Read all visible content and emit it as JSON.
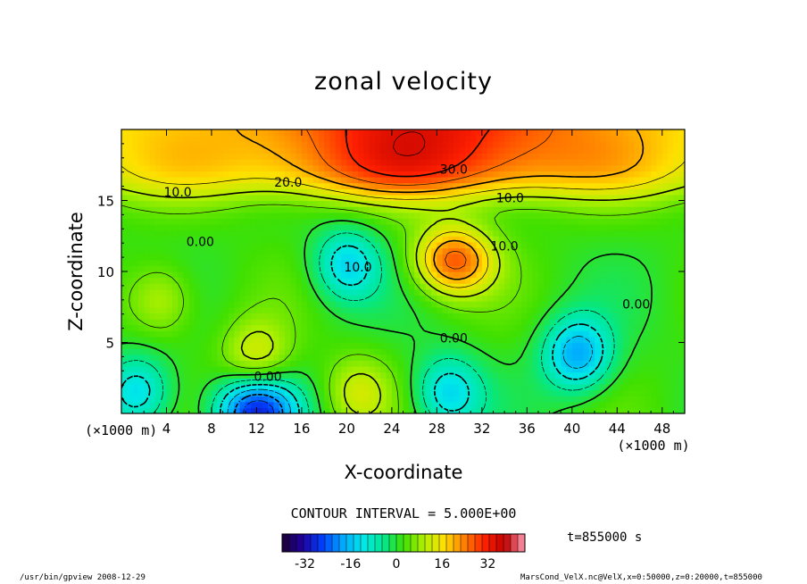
{
  "chart_data": {
    "type": "heatmap",
    "title": "zonal velocity",
    "xlabel": "X-coordinate",
    "ylabel": "Z-coordinate",
    "x_unit_left": "(×1000 m)",
    "x_unit_right": "(×1000 m)",
    "xlim": [
      0,
      50
    ],
    "ylim": [
      0,
      20
    ],
    "xticks": [
      4,
      8,
      12,
      16,
      20,
      24,
      28,
      32,
      36,
      40,
      44,
      48
    ],
    "yticks": [
      5,
      10,
      15
    ],
    "contour_interval_text": "CONTOUR INTERVAL = 5.000E+00",
    "contour_labels": [
      {
        "text": "30.0",
        "x": 29.5,
        "y": 17.2
      },
      {
        "text": "20.0",
        "x": 14.8,
        "y": 16.3
      },
      {
        "text": "10.0",
        "x": 5.0,
        "y": 15.6
      },
      {
        "text": "10.0",
        "x": 34.5,
        "y": 15.2
      },
      {
        "text": "0.00",
        "x": 7.0,
        "y": 12.1
      },
      {
        "text": "10.0",
        "x": 21.0,
        "y": 10.3
      },
      {
        "text": "10.0",
        "x": 34.0,
        "y": 11.8
      },
      {
        "text": "0.00",
        "x": 29.5,
        "y": 5.3
      },
      {
        "text": "0.00",
        "x": 45.7,
        "y": 7.7
      },
      {
        "text": "0.00",
        "x": 13.0,
        "y": 2.6
      }
    ],
    "features": [
      {
        "type": "max",
        "x": 29.5,
        "y": 10.8,
        "value": 25
      },
      {
        "type": "max",
        "x": 41.0,
        "y": 0.6,
        "value": 45
      },
      {
        "type": "min",
        "x": 12.0,
        "y": 0.2,
        "value": -30
      },
      {
        "type": "min",
        "x": 40.5,
        "y": 4.2,
        "value": -20
      },
      {
        "type": "min",
        "x": 20.0,
        "y": 10.5,
        "value": -15
      },
      {
        "type": "min",
        "x": 29.0,
        "y": 1.5,
        "value": -15
      },
      {
        "type": "min",
        "x": 1.5,
        "y": 1.5,
        "value": -15
      },
      {
        "type": "max",
        "x": 12.0,
        "y": 4.0,
        "value": 12
      },
      {
        "type": "max",
        "x": 3.5,
        "y": 8.0,
        "value": 10
      },
      {
        "type": "max",
        "x": 21.0,
        "y": 1.5,
        "value": 10
      },
      {
        "type": "max",
        "x": 28.0,
        "y": 19.5,
        "value": 38
      }
    ],
    "colorbar": {
      "ticks": [
        -32,
        -16,
        0,
        16,
        32
      ],
      "range": [
        -40,
        45
      ],
      "colors": [
        "#1a0033",
        "#2000a0",
        "#0040ff",
        "#00a8ff",
        "#00e8e8",
        "#00e890",
        "#40e000",
        "#b0f000",
        "#ffe000",
        "#ff8000",
        "#ff2000",
        "#c00000",
        "#ff9ab0"
      ]
    },
    "time_label": "t=855000 s"
  },
  "footer": {
    "left": "/usr/bin/gpview   2008-12-29",
    "right": "MarsCond_VelX.nc@VelX,x=0:50000,z=0:20000,t=855000"
  }
}
